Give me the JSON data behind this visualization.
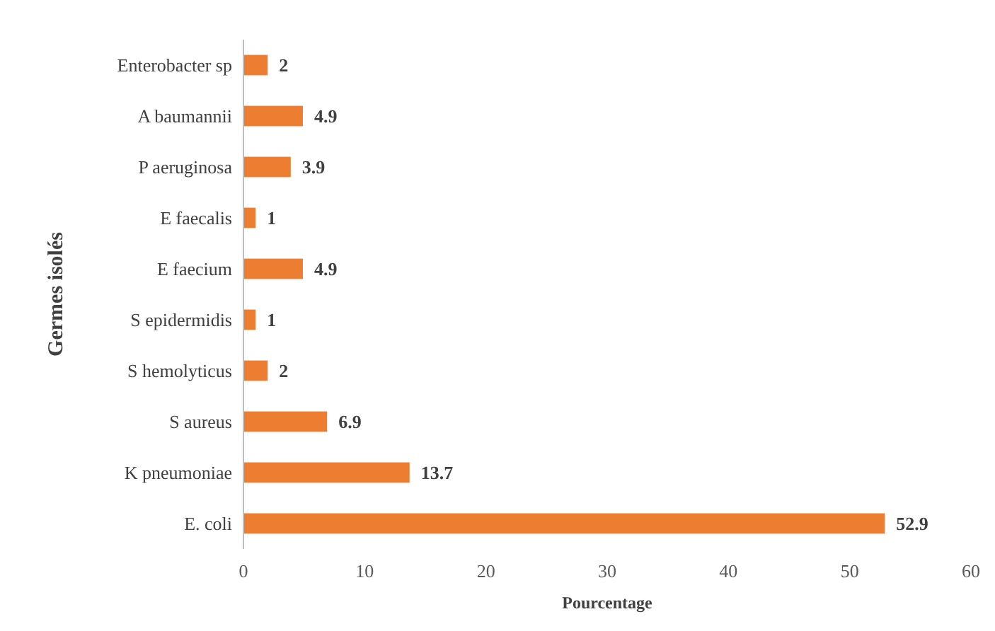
{
  "chart_data": {
    "type": "bar",
    "orientation": "horizontal",
    "xlabel": "Pourcentage",
    "ylabel": "Germes isolés",
    "categories": [
      "Enterobacter sp",
      "A baumannii",
      "P aeruginosa",
      "E faecalis",
      "E faecium",
      "S epidermidis",
      "S hemolyticus",
      "S aureus",
      "K pneumoniae",
      "E. coli"
    ],
    "values": [
      2,
      4.9,
      3.9,
      1,
      4.9,
      1,
      2,
      6.9,
      13.7,
      52.9
    ],
    "color": "#ed7d31",
    "xlim": [
      0,
      60
    ],
    "xticks": [
      0,
      10,
      20,
      30,
      40,
      50,
      60
    ],
    "data_labels": true
  }
}
